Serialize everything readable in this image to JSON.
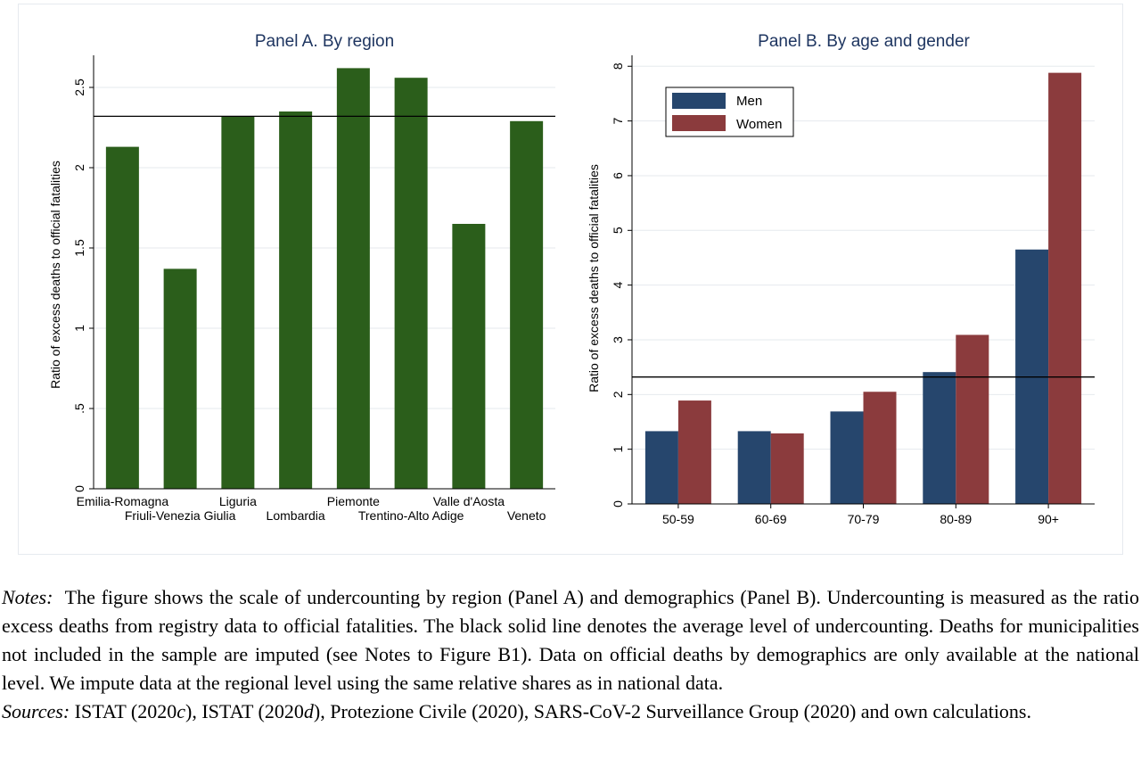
{
  "chart_data": [
    {
      "type": "bar",
      "title": "Panel A. By region",
      "ylabel": "Ratio of excess deaths to official fatalities",
      "xlabel": "",
      "ylim": [
        0,
        2.7
      ],
      "yticks": [
        "0",
        ".5",
        "1",
        "1.5",
        "2",
        "2.5"
      ],
      "ytick_values": [
        0,
        0.5,
        1,
        1.5,
        2,
        2.5
      ],
      "categories": [
        "Emilia-Romagna",
        "Friuli-Venezia Giulia",
        "Liguria",
        "Lombardia",
        "Piemonte",
        "Trentino-Alto Adige",
        "Valle d'Aosta",
        "Veneto"
      ],
      "values": [
        2.13,
        1.37,
        2.32,
        2.35,
        2.62,
        2.56,
        1.65,
        2.29
      ],
      "reference_line": 2.32,
      "bar_color": "#2b5e1b",
      "grid": true
    },
    {
      "type": "bar",
      "title": "Panel B. By age and gender",
      "ylabel": "Ratio of excess deaths to official fatalities",
      "xlabel": "",
      "ylim": [
        0,
        8.2
      ],
      "yticks": [
        "0",
        "1",
        "2",
        "3",
        "4",
        "5",
        "6",
        "7",
        "8"
      ],
      "ytick_values": [
        0,
        1,
        2,
        3,
        4,
        5,
        6,
        7,
        8
      ],
      "categories": [
        "50-59",
        "60-69",
        "70-79",
        "80-89",
        "90+"
      ],
      "series": [
        {
          "name": "Men",
          "values": [
            1.33,
            1.33,
            1.69,
            2.41,
            4.65
          ],
          "color": "#26466d"
        },
        {
          "name": "Women",
          "values": [
            1.89,
            1.29,
            2.05,
            3.09,
            7.88
          ],
          "color": "#8b3b3d"
        }
      ],
      "reference_line": 2.32,
      "legend_position": "top-left",
      "grid": true
    }
  ],
  "caption": {
    "notes_label": "Notes:",
    "notes_text": "The figure shows the scale of undercounting by region (Panel A) and demographics (Panel B). Undercounting is measured as the ratio excess deaths from registry data to official fatalities. The black solid line denotes the average level of undercounting. Deaths for municipalities not included in the sample are imputed (see Notes to Figure B1). Data on official deaths by demographics are only available at the national level. We impute data at the regional level using the same relative shares as in national data.",
    "sources_label": "Sources:",
    "sources_parts": [
      "ISTAT (2020",
      "c",
      "), ISTAT (2020",
      "d",
      "), Protezione Civile (2020), SARS-CoV-2 Surveillance Group (2020) and own calculations."
    ]
  }
}
